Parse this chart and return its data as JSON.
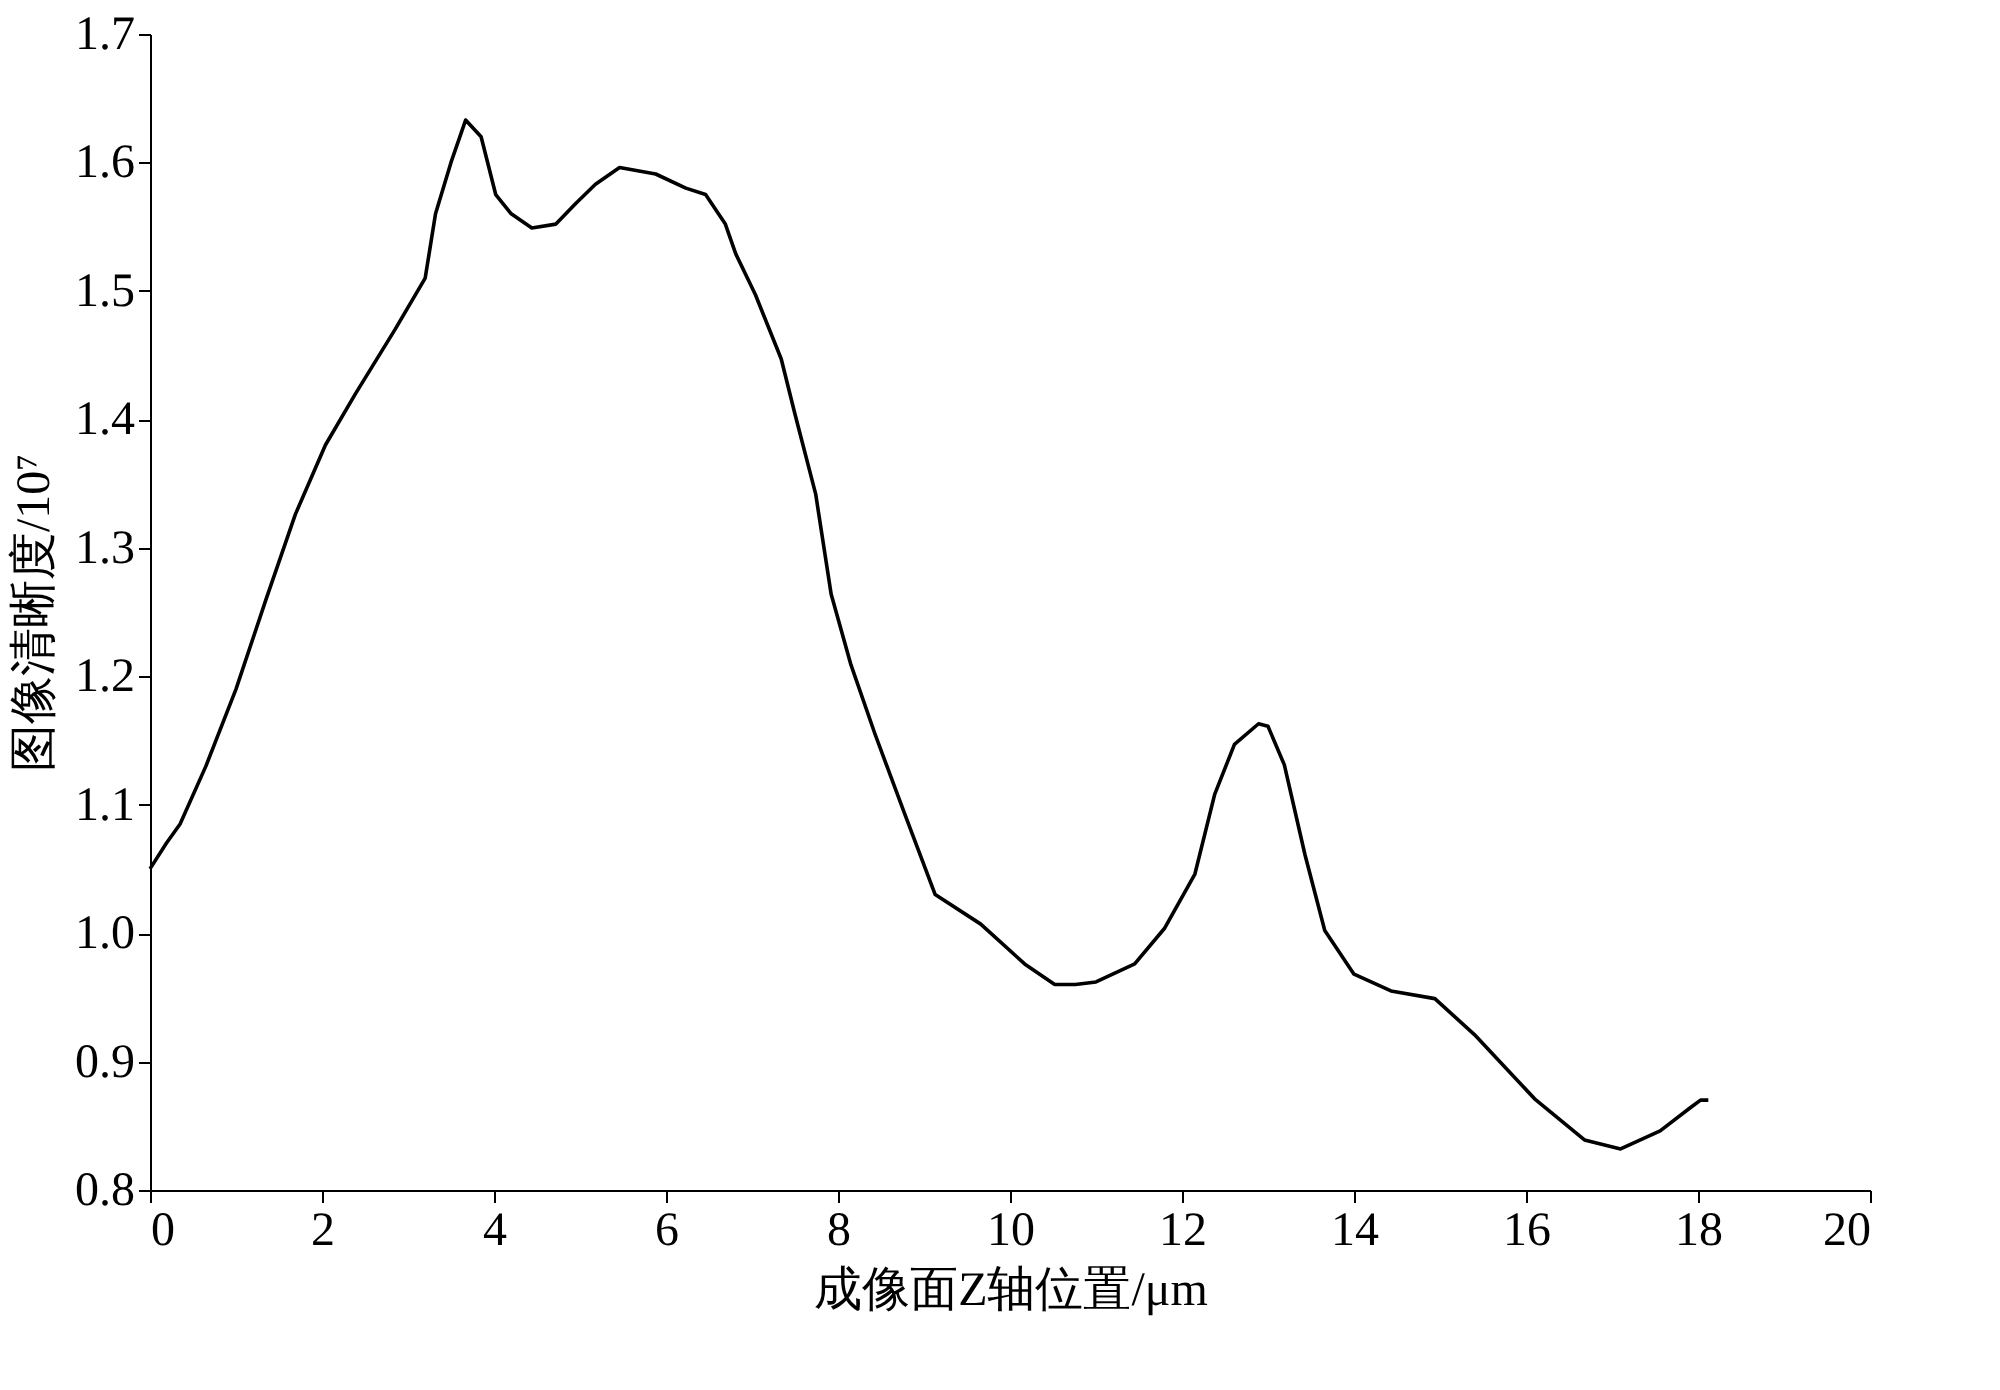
{
  "chart_data": {
    "type": "line",
    "xlabel": "成像面Z轴位置/μm",
    "ylabel": "图像清晰度/10⁷",
    "x": [
      0,
      0.19,
      0.35,
      0.65,
      1.0,
      1.35,
      1.69,
      2.04,
      2.39,
      2.85,
      3.2,
      3.32,
      3.5,
      3.67,
      3.85,
      4.02,
      4.2,
      4.44,
      4.72,
      4.95,
      5.18,
      5.46,
      5.88,
      6.23,
      6.46,
      6.69,
      6.81,
      7.04,
      7.34,
      7.5,
      7.74,
      7.92,
      8.15,
      8.43,
      8.78,
      9.13,
      9.66,
      10.17,
      10.52,
      10.76,
      11.0,
      11.45,
      11.8,
      12.15,
      12.38,
      12.61,
      12.89,
      13.0,
      13.19,
      13.43,
      13.66,
      14.0,
      14.43,
      14.94,
      15.4,
      16.1,
      16.68,
      17.1,
      17.56,
      17.91,
      18.03,
      18.12
    ],
    "series": [
      {
        "color": "#000000",
        "values": [
          1.05,
          1.07,
          1.085,
          1.13,
          1.19,
          1.26,
          1.326,
          1.38,
          1.42,
          1.47,
          1.51,
          1.56,
          1.6,
          1.633,
          1.62,
          1.575,
          1.56,
          1.549,
          1.552,
          1.568,
          1.583,
          1.596,
          1.591,
          1.58,
          1.575,
          1.552,
          1.529,
          1.497,
          1.447,
          1.404,
          1.342,
          1.264,
          1.209,
          1.155,
          1.092,
          1.03,
          1.007,
          0.976,
          0.96,
          0.96,
          0.962,
          0.976,
          1.004,
          1.046,
          1.108,
          1.147,
          1.163,
          1.161,
          1.131,
          1.061,
          1.002,
          0.968,
          0.955,
          0.949,
          0.921,
          0.871,
          0.839,
          0.832,
          0.846,
          0.864,
          0.87,
          0.87
        ]
      }
    ],
    "xlim": [
      0,
      20
    ],
    "xticks": [
      0,
      2,
      4,
      6,
      8,
      10,
      12,
      14,
      16,
      18,
      20
    ],
    "ylim": [
      0.8,
      1.7
    ],
    "yticks": [
      0.8,
      0.9,
      {
        "value": 1.0,
        "label": "1.0"
      },
      1.1,
      1.2,
      1.3,
      1.4,
      1.5,
      1.6,
      1.7
    ],
    "grid": false,
    "legend": false,
    "marker": "none",
    "line_style": "solid"
  }
}
